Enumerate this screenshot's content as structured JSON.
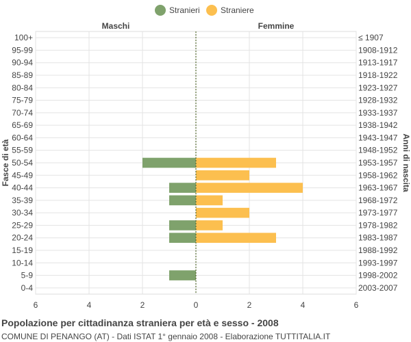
{
  "title": "Popolazione per cittadinanza straniera per età e sesso - 2008",
  "subtitle": "COMUNE DI PENANGO (AT) - Dati ISTAT 1° gennaio 2008 - Elaborazione TUTTITALIA.IT",
  "colors": {
    "male": "#7fa26c",
    "female": "#fcbf4f",
    "center_line": "#556b2f",
    "grid": "#e3e3e3"
  },
  "chart_data": {
    "type": "bar",
    "orientation": "horizontal-population-pyramid",
    "left_header": "Maschi",
    "right_header": "Femmine",
    "ylabel_left": "Fasce di età",
    "ylabel_right": "Anni di nascita",
    "legend": [
      "Stranieri",
      "Straniere"
    ],
    "legend_position": "top-center",
    "xlim": [
      -6,
      6
    ],
    "x_ticks": [
      -6,
      -4,
      -2,
      0,
      2,
      4,
      6
    ],
    "x_tick_labels": [
      "6",
      "4",
      "2",
      "0",
      "2",
      "4",
      "6"
    ],
    "categories": [
      "100+",
      "95-99",
      "90-94",
      "85-89",
      "80-84",
      "75-79",
      "70-74",
      "65-69",
      "60-64",
      "55-59",
      "50-54",
      "45-49",
      "40-44",
      "35-39",
      "30-34",
      "25-29",
      "20-24",
      "15-19",
      "10-14",
      "5-9",
      "0-4"
    ],
    "birth_years": [
      "≤ 1907",
      "1908-1912",
      "1913-1917",
      "1918-1922",
      "1923-1927",
      "1928-1932",
      "1933-1937",
      "1938-1942",
      "1943-1947",
      "1948-1952",
      "1953-1957",
      "1958-1962",
      "1963-1967",
      "1968-1972",
      "1973-1977",
      "1978-1982",
      "1983-1987",
      "1988-1992",
      "1993-1997",
      "1998-2002",
      "2003-2007"
    ],
    "series": [
      {
        "name": "Stranieri",
        "values": [
          0,
          0,
          0,
          0,
          0,
          0,
          0,
          0,
          0,
          0,
          2,
          0,
          1,
          1,
          0,
          1,
          1,
          0,
          0,
          1,
          0
        ]
      },
      {
        "name": "Straniere",
        "values": [
          0,
          0,
          0,
          0,
          0,
          0,
          0,
          0,
          0,
          0,
          3,
          2,
          4,
          1,
          2,
          1,
          3,
          0,
          0,
          0,
          0
        ]
      }
    ],
    "grid": true
  }
}
